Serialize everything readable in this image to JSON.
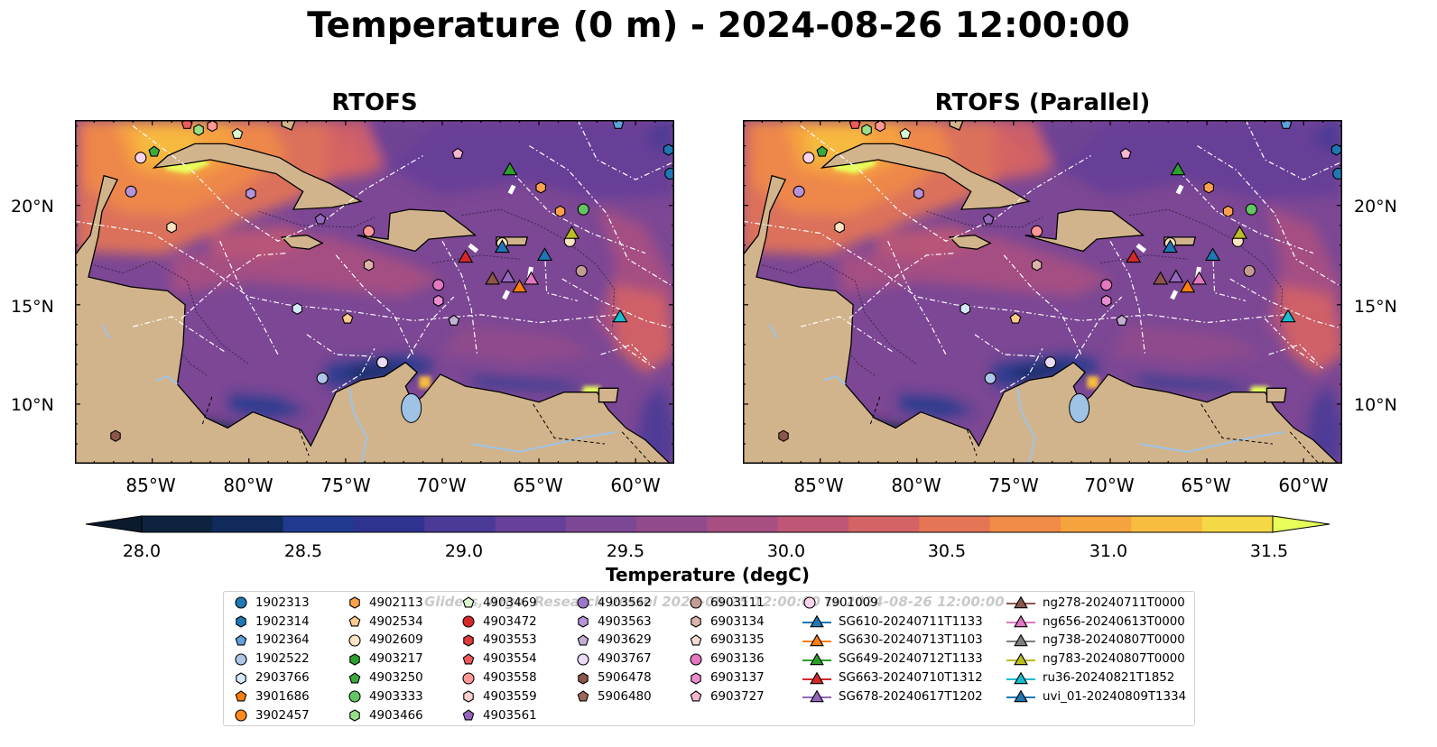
{
  "title": "Temperature (0 m) - 2024-08-26 12:00:00",
  "panels": [
    {
      "title": "RTOFS"
    },
    {
      "title": "RTOFS (Parallel)"
    }
  ],
  "axes": {
    "lat_labels": [
      "20°N",
      "15°N",
      "10°N"
    ],
    "lon_labels": [
      "85°W",
      "80°W",
      "75°W",
      "70°W",
      "65°W",
      "60°W"
    ]
  },
  "colorbar": {
    "label": "Temperature (degC)",
    "ticks": [
      "28.0",
      "28.5",
      "29.0",
      "29.5",
      "30.0",
      "30.5",
      "31.0",
      "31.5"
    ],
    "colors": [
      "#0d2340",
      "#112a5c",
      "#213a8f",
      "#2e3390",
      "#4b3a96",
      "#653f98",
      "#7c4794",
      "#914b8c",
      "#a84f82",
      "#be5675",
      "#d46365",
      "#e57655",
      "#f08b48",
      "#f5a33f",
      "#f7bd3f",
      "#f5d846"
    ],
    "under_color": "#0b1a2e",
    "over_color": "#e8ff5a"
  },
  "watermark": "Gliders, Argo, Research Vessel 2024-08-25 12:00:00 to 2024-08-26 12:00:00",
  "legend": [
    [
      {
        "label": "1902313",
        "marker": "circle",
        "color": "#1f77b4"
      },
      {
        "label": "1902314",
        "marker": "hexagon",
        "color": "#1f77b4"
      },
      {
        "label": "1902364",
        "marker": "pentagon",
        "color": "#5fa2dd"
      },
      {
        "label": "1902522",
        "marker": "circle",
        "color": "#aec7e8"
      },
      {
        "label": "2903766",
        "marker": "hexagon",
        "color": "#d6e9fb"
      },
      {
        "label": "3901686",
        "marker": "pentagon",
        "color": "#ff7f0e"
      },
      {
        "label": "3902457",
        "marker": "circle",
        "color": "#ff8c1a"
      }
    ],
    [
      {
        "label": "4902113",
        "marker": "hexagon",
        "color": "#ffa04d"
      },
      {
        "label": "4902534",
        "marker": "pentagon",
        "color": "#ffc98c"
      },
      {
        "label": "4902609",
        "marker": "circle",
        "color": "#ffe3c2"
      },
      {
        "label": "4903217",
        "marker": "hexagon",
        "color": "#2ca02c"
      },
      {
        "label": "4903250",
        "marker": "pentagon",
        "color": "#3aaa3a"
      },
      {
        "label": "4903333",
        "marker": "circle",
        "color": "#63c663"
      },
      {
        "label": "4903466",
        "marker": "hexagon",
        "color": "#98df8a"
      }
    ],
    [
      {
        "label": "4903469",
        "marker": "pentagon",
        "color": "#d9f7d0"
      },
      {
        "label": "4903472",
        "marker": "circle",
        "color": "#d62728"
      },
      {
        "label": "4903553",
        "marker": "hexagon",
        "color": "#e0393a"
      },
      {
        "label": "4903554",
        "marker": "pentagon",
        "color": "#ef5a5b"
      },
      {
        "label": "4903558",
        "marker": "circle",
        "color": "#ff9896"
      },
      {
        "label": "4903559",
        "marker": "hexagon",
        "color": "#ffd0cf"
      },
      {
        "label": "4903561",
        "marker": "pentagon",
        "color": "#9467bd"
      }
    ],
    [
      {
        "label": "4903562",
        "marker": "circle",
        "color": "#9c78c8"
      },
      {
        "label": "4903563",
        "marker": "hexagon",
        "color": "#b594d9"
      },
      {
        "label": "4903629",
        "marker": "pentagon",
        "color": "#c5b0d5"
      },
      {
        "label": "4903767",
        "marker": "circle",
        "color": "#e8dcf6"
      },
      {
        "label": "5906478",
        "marker": "hexagon",
        "color": "#8c564b"
      },
      {
        "label": "5906480",
        "marker": "pentagon",
        "color": "#a0685c"
      }
    ],
    [
      {
        "label": "6903111",
        "marker": "circle",
        "color": "#c49c94"
      },
      {
        "label": "6903134",
        "marker": "hexagon",
        "color": "#ddb3aa"
      },
      {
        "label": "6903135",
        "marker": "pentagon",
        "color": "#f3dcd6"
      },
      {
        "label": "6903136",
        "marker": "circle",
        "color": "#e377c2"
      },
      {
        "label": "6903137",
        "marker": "hexagon",
        "color": "#ea8ccf"
      },
      {
        "label": "6903727",
        "marker": "pentagon",
        "color": "#f7b6d2"
      }
    ],
    [
      {
        "label": "7901009",
        "marker": "circle",
        "color": "#fbd3ea"
      },
      {
        "label": "SG610-20240711T1133",
        "marker": "triangle",
        "color": "#1f77b4"
      },
      {
        "label": "SG630-20240713T1103",
        "marker": "triangle",
        "color": "#ff7f0e"
      },
      {
        "label": "SG649-20240712T1133",
        "marker": "triangle",
        "color": "#2ca02c"
      },
      {
        "label": "SG663-20240710T1312",
        "marker": "triangle",
        "color": "#d62728"
      },
      {
        "label": "SG678-20240617T1202",
        "marker": "triangle",
        "color": "#9467bd"
      }
    ],
    [
      {
        "label": "ng278-20240711T0000",
        "marker": "triangle",
        "color": "#8c564b"
      },
      {
        "label": "ng656-20240613T0000",
        "marker": "triangle",
        "color": "#e377c2"
      },
      {
        "label": "ng738-20240807T0000",
        "marker": "triangle",
        "color": "#7f7f7f"
      },
      {
        "label": "ng783-20240807T0000",
        "marker": "triangle",
        "color": "#bcbd22"
      },
      {
        "label": "ru36-20240821T1852",
        "marker": "triangle",
        "color": "#17becf"
      },
      {
        "label": "uvi_01-20240809T1334",
        "marker": "triangle",
        "color": "#1f77b4"
      }
    ]
  ],
  "map_points": [
    {
      "lon": -81.9,
      "lat": 24.0,
      "marker": "hexagon",
      "color": "#ff9896"
    },
    {
      "lon": -82.6,
      "lat": 23.8,
      "marker": "hexagon",
      "color": "#98df8a"
    },
    {
      "lon": -83.2,
      "lat": 24.1,
      "marker": "pentagon",
      "color": "#ef5a5b"
    },
    {
      "lon": -80.6,
      "lat": 23.6,
      "marker": "pentagon",
      "color": "#d9f7d0"
    },
    {
      "lon": -85.6,
      "lat": 22.4,
      "marker": "circle",
      "color": "#fbd3ea"
    },
    {
      "lon": -84.9,
      "lat": 22.7,
      "marker": "pentagon",
      "color": "#3aaa3a"
    },
    {
      "lon": -86.1,
      "lat": 20.7,
      "marker": "circle",
      "color": "#b594d9"
    },
    {
      "lon": -79.9,
      "lat": 20.6,
      "marker": "hexagon",
      "color": "#b594d9"
    },
    {
      "lon": -84.0,
      "lat": 18.9,
      "marker": "hexagon",
      "color": "#ffe3c2"
    },
    {
      "lon": -76.3,
      "lat": 19.3,
      "marker": "pentagon",
      "color": "#9467bd"
    },
    {
      "lon": -73.8,
      "lat": 18.7,
      "marker": "circle",
      "color": "#ff9896"
    },
    {
      "lon": -73.8,
      "lat": 17.0,
      "marker": "hexagon",
      "color": "#ddb3aa"
    },
    {
      "lon": -77.5,
      "lat": 14.8,
      "marker": "hexagon",
      "color": "#d6e9fb"
    },
    {
      "lon": -74.9,
      "lat": 14.3,
      "marker": "pentagon",
      "color": "#ffc98c"
    },
    {
      "lon": -73.1,
      "lat": 12.1,
      "marker": "circle",
      "color": "#e8dcf6"
    },
    {
      "lon": -76.2,
      "lat": 11.3,
      "marker": "circle",
      "color": "#aec7e8"
    },
    {
      "lon": -70.2,
      "lat": 16.0,
      "marker": "circle",
      "color": "#e377c2"
    },
    {
      "lon": -70.2,
      "lat": 15.2,
      "marker": "hexagon",
      "color": "#ea8ccf"
    },
    {
      "lon": -69.4,
      "lat": 14.2,
      "marker": "pentagon",
      "color": "#c5b0d5"
    },
    {
      "lon": -69.2,
      "lat": 22.6,
      "marker": "pentagon",
      "color": "#f7b6d2"
    },
    {
      "lon": -64.9,
      "lat": 20.9,
      "marker": "hexagon",
      "color": "#ffa04d"
    },
    {
      "lon": -63.9,
      "lat": 19.7,
      "marker": "hexagon",
      "color": "#ffa04d"
    },
    {
      "lon": -62.7,
      "lat": 19.8,
      "marker": "circle",
      "color": "#63c663"
    },
    {
      "lon": -62.8,
      "lat": 16.7,
      "marker": "circle",
      "color": "#c49c94"
    },
    {
      "lon": -60.9,
      "lat": 24.1,
      "marker": "pentagon",
      "color": "#5fa2dd"
    },
    {
      "lon": -58.3,
      "lat": 22.8,
      "marker": "hexagon",
      "color": "#1f77b4"
    },
    {
      "lon": -58.2,
      "lat": 21.6,
      "marker": "circle",
      "color": "#1f77b4"
    },
    {
      "lon": -86.9,
      "lat": 8.4,
      "marker": "hexagon",
      "color": "#8c564b"
    },
    {
      "lon": -66.9,
      "lat": 18.1,
      "marker": "circle",
      "color": "#ffe3c2"
    },
    {
      "lon": -63.4,
      "lat": 18.2,
      "marker": "circle",
      "color": "#ffe3c2"
    },
    {
      "lon": -66.5,
      "lat": 21.8,
      "marker": "triangle",
      "color": "#2ca02c"
    },
    {
      "lon": -63.3,
      "lat": 18.6,
      "marker": "triangle",
      "color": "#bcbd22"
    },
    {
      "lon": -66.9,
      "lat": 17.9,
      "marker": "triangle",
      "color": "#1f77b4"
    },
    {
      "lon": -64.7,
      "lat": 17.5,
      "marker": "triangle",
      "color": "#1f77b4"
    },
    {
      "lon": -68.8,
      "lat": 17.4,
      "marker": "triangle",
      "color": "#d62728"
    },
    {
      "lon": -67.4,
      "lat": 16.3,
      "marker": "triangle",
      "color": "#8c564b"
    },
    {
      "lon": -66.6,
      "lat": 16.4,
      "marker": "triangle",
      "color": "#9467bd"
    },
    {
      "lon": -65.4,
      "lat": 16.3,
      "marker": "triangle",
      "color": "#e377c2"
    },
    {
      "lon": -66.0,
      "lat": 15.9,
      "marker": "triangle",
      "color": "#ff7f0e"
    },
    {
      "lon": -60.8,
      "lat": 14.4,
      "marker": "triangle",
      "color": "#17becf"
    }
  ]
}
